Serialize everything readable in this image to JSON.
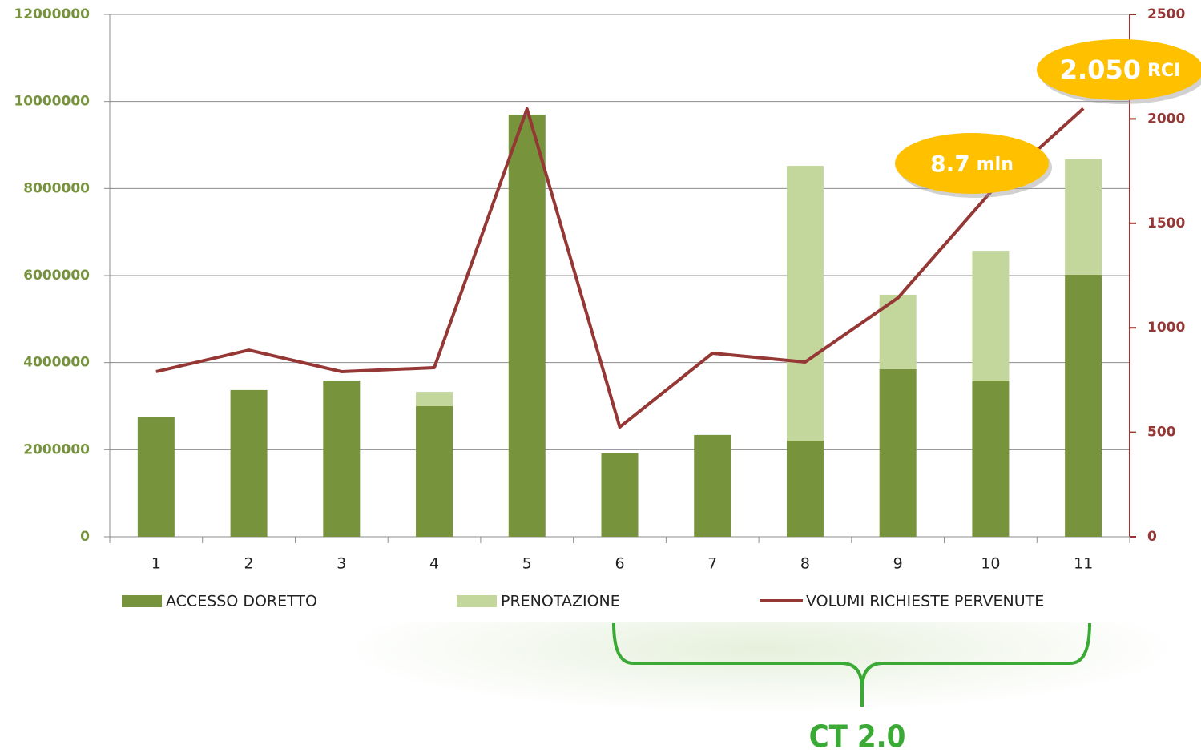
{
  "chart_data": {
    "type": "bar",
    "categories": [
      "1",
      "2",
      "3",
      "4",
      "5",
      "6",
      "7",
      "8",
      "9",
      "10",
      "11"
    ],
    "series": [
      {
        "name": "ACCESSO DORETTO",
        "color": "#77933c",
        "stack": true,
        "values": [
          2760000,
          3370000,
          3590000,
          3000000,
          9700000,
          1920000,
          2340000,
          2210000,
          3850000,
          3590000,
          6020000
        ]
      },
      {
        "name": "PRENOTAZIONE",
        "color": "#c3d69b",
        "stack": true,
        "values": [
          0,
          0,
          0,
          330000,
          0,
          0,
          0,
          6310000,
          1710000,
          2980000,
          2650000
        ]
      },
      {
        "name": "VOLUMI RICHIESTE PERVENUTE",
        "color": "#953735",
        "type": "line",
        "axis": "y2",
        "values": [
          790,
          893,
          790,
          809,
          2048,
          525,
          878,
          836,
          1143,
          1649,
          2050
        ]
      }
    ],
    "ylim": [
      0,
      12000000
    ],
    "yticks": [
      0,
      2000000,
      4000000,
      6000000,
      8000000,
      10000000,
      12000000
    ],
    "y2lim": [
      0,
      2500
    ],
    "y2ticks": [
      0,
      500,
      1000,
      1500,
      2000,
      2500
    ],
    "grid": true,
    "legend": "bottom",
    "annotations": [
      "2.050",
      "RCI",
      "8.7",
      "mln",
      "CT 2.0"
    ]
  }
}
